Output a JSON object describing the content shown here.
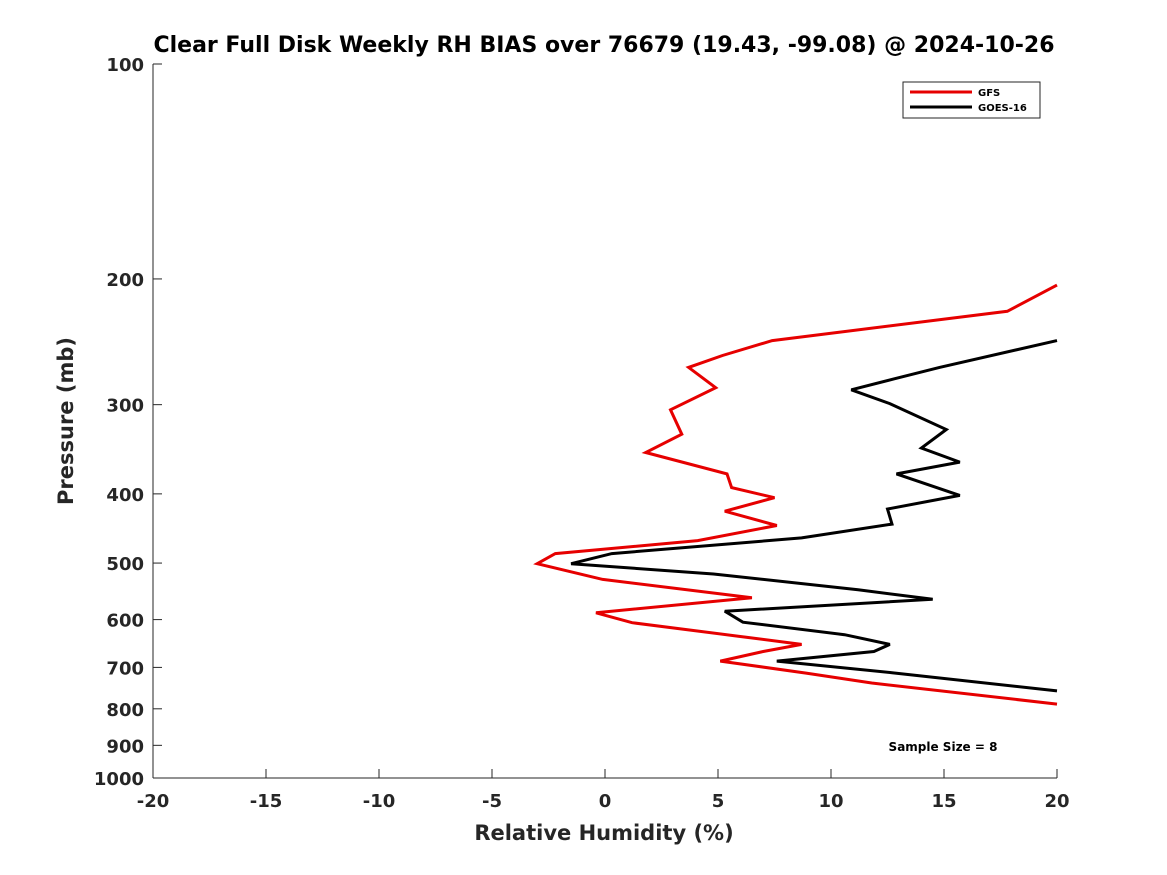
{
  "chart_data": {
    "type": "line",
    "title": "Clear Full Disk Weekly RH BIAS over 76679 (19.43, -99.08) @ 2024-10-26",
    "xlabel": "Relative Humidity (%)",
    "ylabel": "Pressure (mb)",
    "xlim": [
      -20,
      20
    ],
    "ylim": [
      100,
      1000
    ],
    "y_scale": "log",
    "y_reversed": true,
    "x_ticks": [
      "-20",
      "-15",
      "-10",
      "-5",
      "0",
      "5",
      "10",
      "15",
      "20"
    ],
    "y_ticks": [
      "100",
      "200",
      "300",
      "400",
      "500",
      "600",
      "700",
      "800",
      "900",
      "1000"
    ],
    "grid": false,
    "legend_position": "top-right",
    "annotation": "Sample Size = 8",
    "series": [
      {
        "name": "GFS",
        "color": "#e60000",
        "points": [
          [
            20.0,
            204
          ],
          [
            17.8,
            222
          ],
          [
            7.4,
            244
          ],
          [
            5.2,
            256
          ],
          [
            3.7,
            266
          ],
          [
            4.9,
            284
          ],
          [
            2.9,
            305
          ],
          [
            3.4,
            330
          ],
          [
            1.8,
            350
          ],
          [
            5.4,
            375
          ],
          [
            5.6,
            392
          ],
          [
            7.5,
            405
          ],
          [
            5.3,
            423
          ],
          [
            7.6,
            443
          ],
          [
            4.1,
            465
          ],
          [
            -2.2,
            485
          ],
          [
            -3.0,
            501
          ],
          [
            -0.1,
            527
          ],
          [
            6.5,
            559
          ],
          [
            -0.4,
            587
          ],
          [
            1.2,
            606
          ],
          [
            5.9,
            633
          ],
          [
            8.7,
            650
          ],
          [
            7.0,
            665
          ],
          [
            5.1,
            686
          ],
          [
            8.9,
            713
          ],
          [
            11.8,
            736
          ],
          [
            20.0,
            788
          ]
        ]
      },
      {
        "name": "GOES-16",
        "color": "#000000",
        "points": [
          [
            20.0,
            244
          ],
          [
            14.8,
            266
          ],
          [
            12.8,
            276
          ],
          [
            10.9,
            286
          ],
          [
            12.6,
            299
          ],
          [
            15.1,
            325
          ],
          [
            14.0,
            345
          ],
          [
            15.7,
            361
          ],
          [
            12.9,
            375
          ],
          [
            15.7,
            402
          ],
          [
            12.5,
            420
          ],
          [
            12.7,
            441
          ],
          [
            8.7,
            461
          ],
          [
            0.3,
            485
          ],
          [
            -1.5,
            501
          ],
          [
            4.8,
            518
          ],
          [
            11.2,
            545
          ],
          [
            14.5,
            562
          ],
          [
            5.3,
            584
          ],
          [
            6.1,
            605
          ],
          [
            10.6,
            630
          ],
          [
            12.6,
            650
          ],
          [
            11.9,
            665
          ],
          [
            7.6,
            686
          ],
          [
            12.7,
            712
          ],
          [
            20.0,
            755
          ]
        ]
      }
    ]
  }
}
